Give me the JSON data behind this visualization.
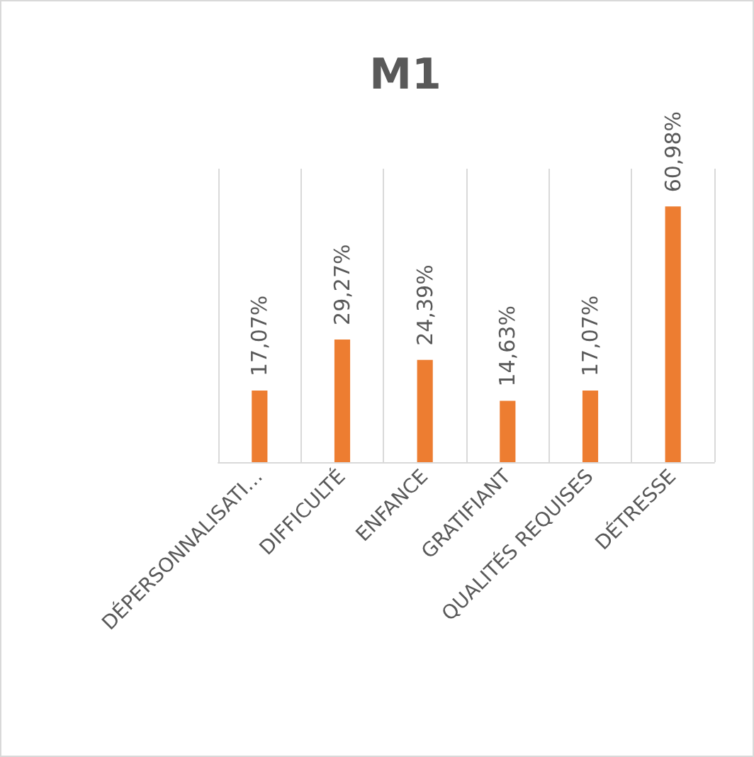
{
  "chart_data": {
    "type": "bar",
    "title": "M1",
    "categories": [
      "DÉPERSONNALISATI…",
      "DIFFICULTÉ",
      "ENFANCE",
      "GRATIFIANT",
      "QUALITÉS REQUISES",
      "DÉTRESSE"
    ],
    "values": [
      17.07,
      29.27,
      24.39,
      14.63,
      17.07,
      60.98
    ],
    "value_labels": [
      "17,07%",
      "29,27%",
      "24,39%",
      "14,63%",
      "17,07%",
      "60,98%"
    ],
    "color": "#ed7d31",
    "ylim": [
      0,
      70
    ],
    "grid": "x"
  }
}
